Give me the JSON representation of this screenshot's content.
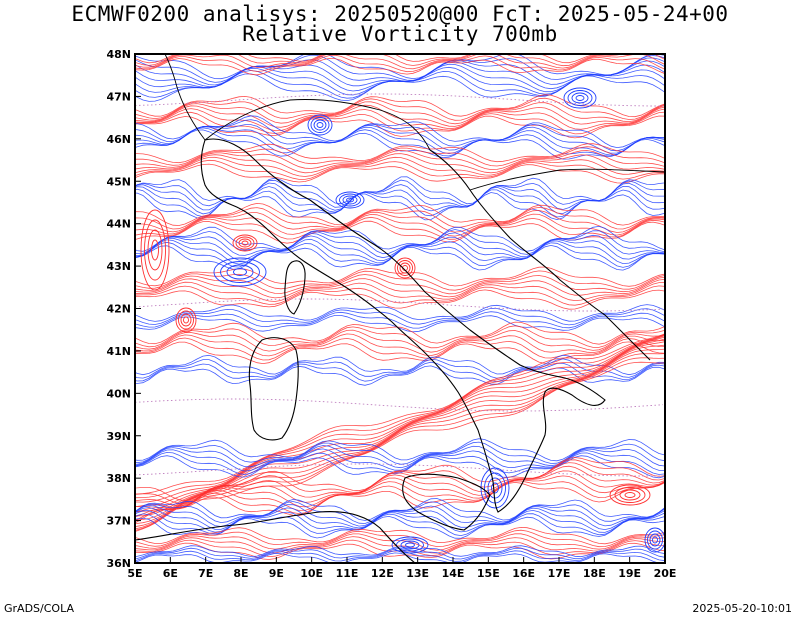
{
  "title_line1": "ECMWF0200 analisys: 20250520@00 FcT: 2025-05-24+00",
  "title_line2": "Relative Vorticity 700mb",
  "footer_left": "GrADS/COLA",
  "footer_right": "2025-05-20-10:01",
  "map": {
    "lon_range": [
      5,
      20
    ],
    "lat_range": [
      36,
      48
    ],
    "lon_labels": [
      "5E",
      "6E",
      "7E",
      "8E",
      "9E",
      "10E",
      "11E",
      "12E",
      "13E",
      "14E",
      "15E",
      "16E",
      "17E",
      "18E",
      "19E",
      "20E"
    ],
    "lat_labels": [
      "36N",
      "37N",
      "38N",
      "39N",
      "40N",
      "41N",
      "42N",
      "43N",
      "44N",
      "45N",
      "46N",
      "47N",
      "48N"
    ],
    "colors": {
      "positive": "#ff3030",
      "negative": "#2040ff",
      "coast": "#000000",
      "dotted": "#c080c0"
    }
  }
}
